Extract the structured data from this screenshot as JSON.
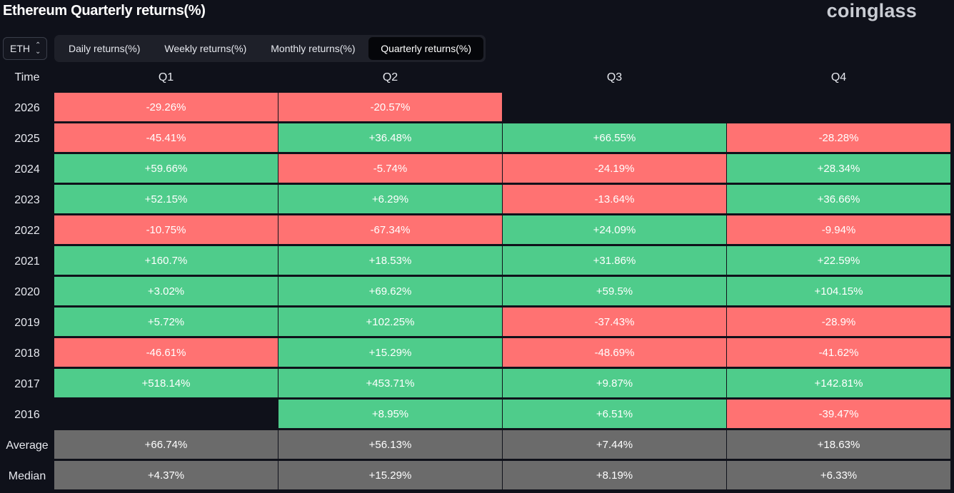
{
  "header": {
    "title": "Ethereum Quarterly returns(%)",
    "brand": "coinglass"
  },
  "asset_select": {
    "value": "ETH"
  },
  "tabs": [
    {
      "label": "Daily returns(%)",
      "active": false
    },
    {
      "label": "Weekly returns(%)",
      "active": false
    },
    {
      "label": "Monthly returns(%)",
      "active": false
    },
    {
      "label": "Quarterly returns(%)",
      "active": true
    }
  ],
  "colors": {
    "positive": "#4fcc8b",
    "negative": "#ff7272",
    "summary": "#6b6b6b",
    "background": "#0f111a"
  },
  "chart_data": {
    "type": "table",
    "row_header": "Time",
    "columns": [
      "Q1",
      "Q2",
      "Q3",
      "Q4"
    ],
    "rows": [
      {
        "label": "2026",
        "values": [
          "-29.26%",
          "-20.57%",
          "",
          ""
        ]
      },
      {
        "label": "2025",
        "values": [
          "-45.41%",
          "+36.48%",
          "+66.55%",
          "-28.28%"
        ]
      },
      {
        "label": "2024",
        "values": [
          "+59.66%",
          "-5.74%",
          "-24.19%",
          "+28.34%"
        ]
      },
      {
        "label": "2023",
        "values": [
          "+52.15%",
          "+6.29%",
          "-13.64%",
          "+36.66%"
        ]
      },
      {
        "label": "2022",
        "values": [
          "-10.75%",
          "-67.34%",
          "+24.09%",
          "-9.94%"
        ]
      },
      {
        "label": "2021",
        "values": [
          "+160.7%",
          "+18.53%",
          "+31.86%",
          "+22.59%"
        ]
      },
      {
        "label": "2020",
        "values": [
          "+3.02%",
          "+69.62%",
          "+59.5%",
          "+104.15%"
        ]
      },
      {
        "label": "2019",
        "values": [
          "+5.72%",
          "+102.25%",
          "-37.43%",
          "-28.9%"
        ]
      },
      {
        "label": "2018",
        "values": [
          "-46.61%",
          "+15.29%",
          "-48.69%",
          "-41.62%"
        ]
      },
      {
        "label": "2017",
        "values": [
          "+518.14%",
          "+453.71%",
          "+9.87%",
          "+142.81%"
        ]
      },
      {
        "label": "2016",
        "values": [
          "",
          "+8.95%",
          "+6.51%",
          "-39.47%"
        ]
      }
    ],
    "summary_rows": [
      {
        "label": "Average",
        "values": [
          "+66.74%",
          "+56.13%",
          "+7.44%",
          "+18.63%"
        ]
      },
      {
        "label": "Median",
        "values": [
          "+4.37%",
          "+15.29%",
          "+8.19%",
          "+6.33%"
        ]
      }
    ]
  }
}
